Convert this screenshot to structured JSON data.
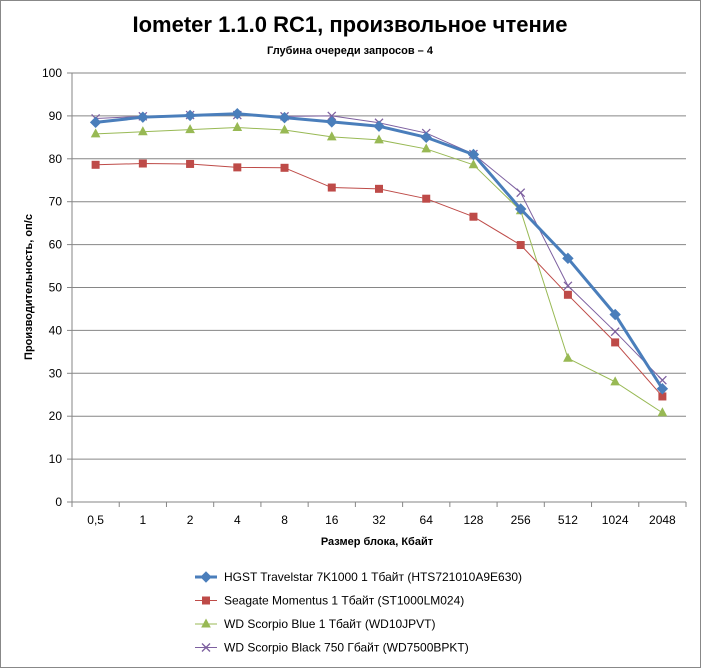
{
  "chart_data": {
    "type": "line",
    "title": "Iometer 1.1.0 RC1, произвольное чтение",
    "subtitle": "Глубина очереди запросов – 4",
    "xlabel": "Размер блока, Кбайт",
    "ylabel": "Производительность, оп/с",
    "categories": [
      "0,5",
      "1",
      "2",
      "4",
      "8",
      "16",
      "32",
      "64",
      "128",
      "256",
      "512",
      "1024",
      "2048"
    ],
    "ylim": [
      0,
      100
    ],
    "yticks": [
      0,
      10,
      20,
      30,
      40,
      50,
      60,
      70,
      80,
      90,
      100
    ],
    "grid": true,
    "legend_position": "bottom",
    "series": [
      {
        "name": "HGST Travelstar 7K1000 1 Тбайт (HTS721010A9E630)",
        "color": "#4a7ebb",
        "marker": "diamond",
        "width": 3,
        "values": [
          88.5,
          89.7,
          90.1,
          90.5,
          89.6,
          88.6,
          87.6,
          85.0,
          81.0,
          68.3,
          56.8,
          43.7,
          26.4
        ]
      },
      {
        "name": "Seagate Momentus 1 Тбайт  (ST1000LM024)",
        "color": "#be4b48",
        "marker": "square",
        "width": 1,
        "values": [
          78.6,
          78.9,
          78.8,
          78.0,
          77.9,
          73.3,
          73.0,
          70.7,
          66.5,
          59.9,
          48.3,
          37.2,
          24.6
        ]
      },
      {
        "name": "WD Scorpio Blue 1 Тбайт (WD10JPVT)",
        "color": "#98b954",
        "marker": "triangle",
        "width": 1,
        "values": [
          85.8,
          86.3,
          86.8,
          87.3,
          86.7,
          85.1,
          84.4,
          82.3,
          78.6,
          67.9,
          33.5,
          28.0,
          20.8
        ]
      },
      {
        "name": "WD Scorpio Black 750 Гбайт (WD7500BPKT)",
        "color": "#7d60a0",
        "marker": "x",
        "width": 1,
        "values": [
          89.4,
          89.9,
          90.2,
          90.2,
          89.9,
          90.0,
          88.4,
          86.0,
          81.1,
          72.1,
          50.4,
          39.7,
          28.4
        ]
      }
    ]
  }
}
